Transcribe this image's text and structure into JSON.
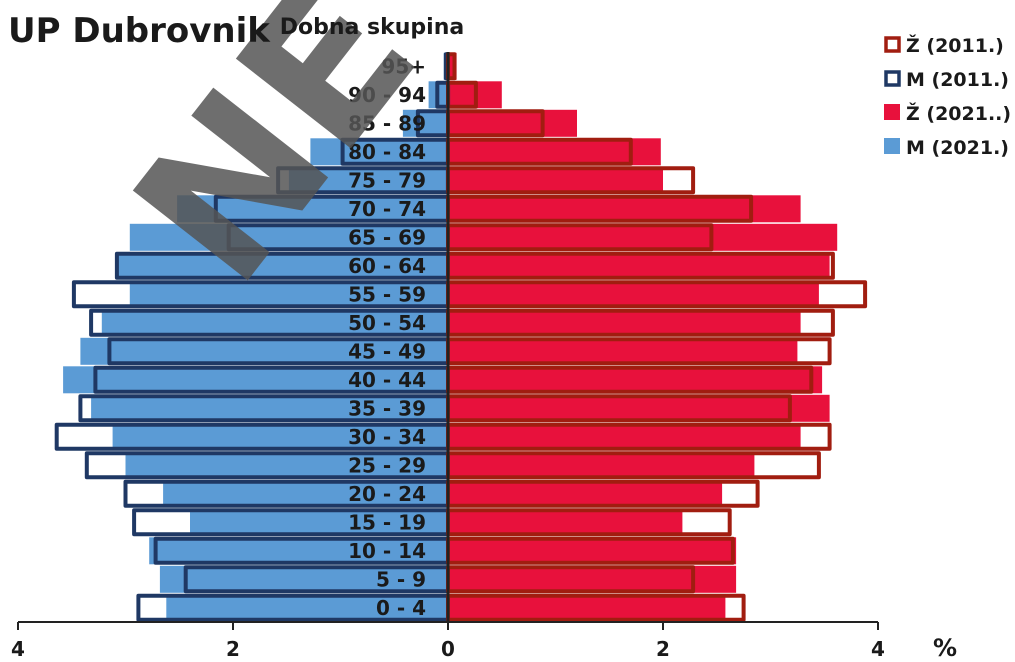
{
  "chart_data": {
    "type": "bar",
    "orientation": "horizontal",
    "layout": "population-pyramid",
    "title": "UP Dubrovnik",
    "ylabel": "Dobna skupina",
    "xunit": "%",
    "xlim": [
      -4,
      4
    ],
    "xticks": [
      -4,
      -2,
      0,
      2,
      4
    ],
    "xtick_labels": [
      "4",
      "2",
      "0",
      "2",
      "4"
    ],
    "categories": [
      "0 - 4",
      "5 - 9",
      "10 - 14",
      "15 - 19",
      "20 - 24",
      "25 - 29",
      "30 - 34",
      "35 - 39",
      "40 - 44",
      "45 - 49",
      "50 - 54",
      "55 - 59",
      "60 - 64",
      "65 - 69",
      "70 - 74",
      "75 - 79",
      "80 - 84",
      "85 - 89",
      "90 - 94",
      "95+"
    ],
    "series": [
      {
        "name": "M (2021.)",
        "side": "left",
        "style": "filled",
        "color": "#5b9bd5",
        "values": [
          2.62,
          2.68,
          2.78,
          2.4,
          2.65,
          3.0,
          3.12,
          3.32,
          3.58,
          3.42,
          3.22,
          2.96,
          3.08,
          2.96,
          2.52,
          1.48,
          1.28,
          0.42,
          0.18,
          0.04
        ]
      },
      {
        "name": "Ž (2021..)",
        "side": "right",
        "style": "filled",
        "color": "#e8113c",
        "values": [
          2.58,
          2.68,
          2.68,
          2.18,
          2.55,
          2.85,
          3.28,
          3.55,
          3.48,
          3.25,
          3.28,
          3.45,
          3.55,
          3.62,
          3.28,
          2.0,
          1.98,
          1.2,
          0.5,
          0.08
        ]
      },
      {
        "name": "M (2011.)",
        "side": "left",
        "style": "outline",
        "color": "#1f3864",
        "values": [
          2.88,
          2.44,
          2.72,
          2.92,
          3.0,
          3.36,
          3.64,
          3.42,
          3.28,
          3.15,
          3.32,
          3.48,
          3.08,
          2.04,
          2.16,
          1.58,
          0.98,
          0.28,
          0.1,
          0.02
        ]
      },
      {
        "name": "Ž (2011.)",
        "side": "right",
        "style": "outline",
        "color": "#a11d10",
        "values": [
          2.75,
          2.28,
          2.65,
          2.62,
          2.88,
          3.45,
          3.55,
          3.18,
          3.38,
          3.55,
          3.58,
          3.88,
          3.58,
          2.45,
          2.82,
          2.28,
          1.7,
          0.88,
          0.26,
          0.06
        ]
      }
    ],
    "legend": {
      "position": "top-right",
      "items": [
        {
          "label": "Ž (2011.)",
          "style": "outline",
          "color": "#a11d10"
        },
        {
          "label": "M (2011.)",
          "style": "outline",
          "color": "#1f3864"
        },
        {
          "label": "Ž (2021..)",
          "style": "filled",
          "color": "#e8113c"
        },
        {
          "label": "M (2021.)",
          "style": "filled",
          "color": "#5b9bd5"
        }
      ]
    },
    "grid": false,
    "watermark": "NE"
  }
}
